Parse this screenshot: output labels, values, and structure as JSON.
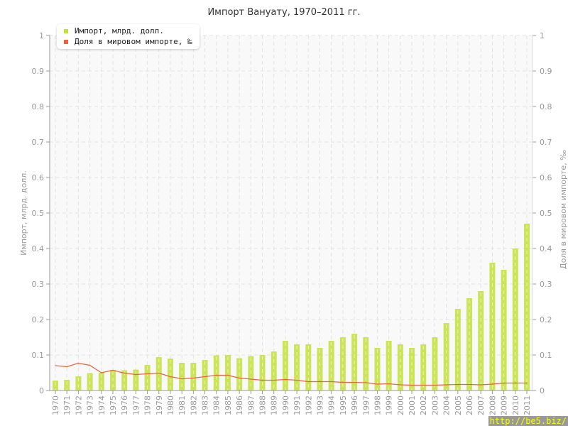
{
  "chart_data": {
    "type": "bar+line",
    "title": "Импорт Вануату, 1970–2011 гг.",
    "ylabel": "Импорт, млрд. долл.",
    "y2label": "Доля в мировом импорте, ‰",
    "ylim": [
      0,
      1
    ],
    "y2lim": [
      0,
      1
    ],
    "yticks": [
      "0",
      "0.1",
      "0.2",
      "0.3",
      "0.4",
      "0.5",
      "0.6",
      "0.7",
      "0.8",
      "0.9",
      "1"
    ],
    "grid": true,
    "legend_placement": "top-left",
    "categories": [
      "1970",
      "1971",
      "1972",
      "1973",
      "1974",
      "1975",
      "1976",
      "1977",
      "1978",
      "1979",
      "1980",
      "1981",
      "1982",
      "1983",
      "1984",
      "1985",
      "1986",
      "1987",
      "1988",
      "1989",
      "1990",
      "1991",
      "1992",
      "1993",
      "1994",
      "1995",
      "1996",
      "1997",
      "1998",
      "1999",
      "2000",
      "2001",
      "2002",
      "2003",
      "2004",
      "2005",
      "2006",
      "2007",
      "2008",
      "2009",
      "2010",
      "2011"
    ],
    "series": [
      {
        "name": "Импорт, млрд. долл.",
        "type": "bar",
        "color": "#c4e03c",
        "values": [
          0.028,
          0.03,
          0.04,
          0.049,
          0.05,
          0.058,
          0.057,
          0.059,
          0.072,
          0.094,
          0.09,
          0.078,
          0.078,
          0.086,
          0.099,
          0.1,
          0.091,
          0.097,
          0.1,
          0.11,
          0.14,
          0.13,
          0.13,
          0.12,
          0.14,
          0.15,
          0.16,
          0.15,
          0.12,
          0.14,
          0.13,
          0.12,
          0.13,
          0.15,
          0.19,
          0.23,
          0.26,
          0.28,
          0.36,
          0.34,
          0.4,
          0.47
        ]
      },
      {
        "name": "Доля в мировом импорте, ‰",
        "type": "line",
        "color": "#e8653a",
        "values": [
          0.07,
          0.067,
          0.077,
          0.071,
          0.05,
          0.057,
          0.049,
          0.045,
          0.047,
          0.049,
          0.039,
          0.033,
          0.035,
          0.039,
          0.043,
          0.043,
          0.035,
          0.032,
          0.029,
          0.029,
          0.031,
          0.029,
          0.025,
          0.025,
          0.025,
          0.023,
          0.023,
          0.022,
          0.018,
          0.019,
          0.016,
          0.015,
          0.015,
          0.015,
          0.016,
          0.017,
          0.017,
          0.016,
          0.018,
          0.021,
          0.021,
          0.021
        ]
      }
    ]
  },
  "watermark": "http://be5.biz/"
}
